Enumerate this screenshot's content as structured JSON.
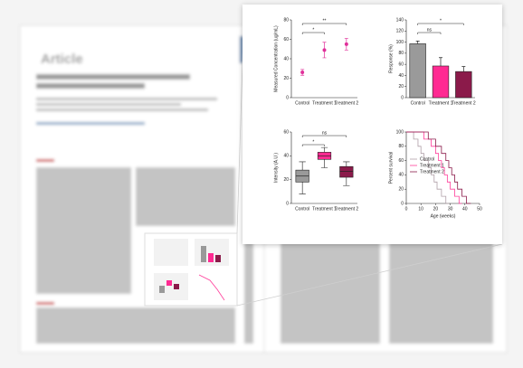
{
  "page": {
    "heading": "Article"
  },
  "chart_data": [
    {
      "type": "dot",
      "ylabel": "Measured Concentration (ug/mL)",
      "categories": [
        "Control",
        "Treatment 1",
        "Treatment 2"
      ],
      "values": [
        26,
        49,
        55
      ],
      "errors": [
        3,
        8,
        6
      ],
      "color": "#e0309a",
      "ylim": [
        0,
        80
      ],
      "yticks": [
        0,
        20,
        40,
        60,
        80
      ],
      "annotations": [
        {
          "text": "*",
          "between": [
            "Control",
            "Treatment 1"
          ]
        },
        {
          "text": "**",
          "between": [
            "Control",
            "Treatment 2"
          ]
        }
      ]
    },
    {
      "type": "bar",
      "ylabel": "Response (%)",
      "categories": [
        "Control",
        "Treatment 1",
        "Treatment 2"
      ],
      "values": [
        97,
        57,
        47
      ],
      "errors": [
        5,
        15,
        9
      ],
      "colors": [
        "#9a9a9a",
        "#ff2a92",
        "#8b1a4a"
      ],
      "ylim": [
        0,
        140
      ],
      "yticks": [
        0,
        20,
        40,
        60,
        80,
        100,
        120,
        140
      ],
      "annotations": [
        {
          "text": "ns",
          "between": [
            "Control",
            "Treatment 1"
          ]
        },
        {
          "text": "*",
          "between": [
            "Control",
            "Treatment 2"
          ]
        }
      ]
    },
    {
      "type": "box",
      "ylabel": "Intensity (A.U.)",
      "categories": [
        "Control",
        "Treatment 1",
        "Treatment 2"
      ],
      "boxes": [
        {
          "min": 8,
          "q1": 18,
          "median": 23,
          "q3": 28,
          "max": 35
        },
        {
          "min": 30,
          "q1": 37,
          "median": 40,
          "q3": 43,
          "max": 47
        },
        {
          "min": 15,
          "q1": 22,
          "median": 27,
          "q3": 31,
          "max": 35
        }
      ],
      "colors": [
        "#9a9a9a",
        "#ff2a92",
        "#8b1a4a"
      ],
      "ylim": [
        0,
        60
      ],
      "yticks": [
        0,
        20,
        40,
        60
      ],
      "annotations": [
        {
          "text": "*",
          "between": [
            "Control",
            "Treatment 1"
          ]
        },
        {
          "text": "ns",
          "between": [
            "Control",
            "Treatment 2"
          ]
        }
      ]
    },
    {
      "type": "line",
      "ylabel": "Percent survival",
      "xlabel": "Age (weeks)",
      "xlim": [
        0,
        50
      ],
      "xticks": [
        0,
        10,
        20,
        30,
        40,
        50
      ],
      "ylim": [
        0,
        100
      ],
      "yticks": [
        0,
        20,
        40,
        60,
        80,
        100
      ],
      "series": [
        {
          "name": "Control",
          "color": "#b0a0a8",
          "x": [
            0,
            5,
            5,
            8,
            8,
            10,
            10,
            12,
            12,
            15,
            15,
            17,
            17,
            19,
            19,
            21,
            21,
            24,
            24,
            27,
            27,
            29
          ],
          "values": [
            100,
            100,
            90,
            90,
            80,
            80,
            70,
            70,
            60,
            60,
            50,
            50,
            40,
            40,
            30,
            30,
            20,
            20,
            10,
            10,
            0,
            0
          ]
        },
        {
          "name": "Treatment 1",
          "color": "#ff3d9a",
          "x": [
            0,
            12,
            12,
            17,
            17,
            20,
            20,
            22,
            22,
            24,
            24,
            26,
            26,
            28,
            28,
            30,
            30,
            33,
            33,
            36,
            36,
            38
          ],
          "values": [
            100,
            100,
            90,
            90,
            80,
            80,
            70,
            70,
            60,
            60,
            50,
            50,
            40,
            40,
            30,
            30,
            20,
            20,
            10,
            10,
            0,
            0
          ]
        },
        {
          "name": "Treatment 2",
          "color": "#8b1a4a",
          "x": [
            0,
            15,
            15,
            20,
            20,
            24,
            24,
            27,
            27,
            29,
            29,
            31,
            31,
            33,
            33,
            35,
            35,
            38,
            38,
            41,
            41,
            44
          ],
          "values": [
            100,
            100,
            90,
            90,
            80,
            80,
            70,
            70,
            60,
            60,
            50,
            50,
            40,
            40,
            30,
            30,
            20,
            20,
            10,
            10,
            0,
            0
          ]
        }
      ]
    }
  ]
}
